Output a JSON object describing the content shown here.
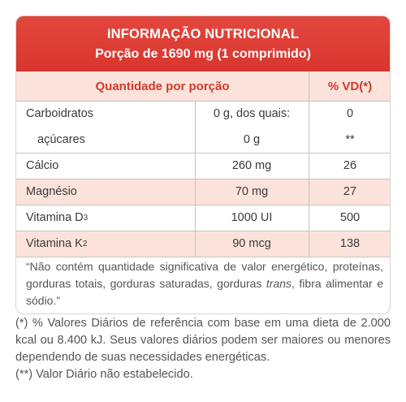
{
  "banner": {
    "title": "INFORMAÇÃO NUTRICIONAL",
    "serving": "Porção de 1690 mg (1 comprimido)"
  },
  "table": {
    "header": {
      "quantity": "Quantidade por porção",
      "vd": "% VD(*)"
    },
    "rows": [
      {
        "name": "Carboidratos",
        "amount": "0 g, dos quais:",
        "vd": "0"
      },
      {
        "name": "açúcares",
        "amount": "0 g",
        "vd": "**"
      },
      {
        "name": "Cálcio",
        "amount": "260 mg",
        "vd": "26"
      },
      {
        "name": "Magnésio",
        "amount": "70 mg",
        "vd": "27"
      },
      {
        "name": "Vitamina D",
        "sub": "3",
        "amount": "1000 UI",
        "vd": "500"
      },
      {
        "name": "Vitamina K",
        "sub": "2",
        "amount": "90 mcg",
        "vd": "138"
      }
    ]
  },
  "note": {
    "before": "“Não contém quantidade significativa de valor energético, proteínas, gorduras totais, gorduras saturadas, gorduras ",
    "italic": "trans",
    "after": ", fibra alimentar  e sódio.”"
  },
  "footnotes": {
    "vd": "(*) % Valores Diários de referência com base em uma dieta de 2.000 kcal ou 8.400 kJ. Seus valores diários podem ser maiores ou menores dependendo de suas necessidades energéticas.",
    "na": "(**) Valor Diário não estabelecido."
  },
  "colors": {
    "banner": "#d8362e",
    "header_text": "#d03a2e",
    "row_tint": "#fbe3dc"
  }
}
